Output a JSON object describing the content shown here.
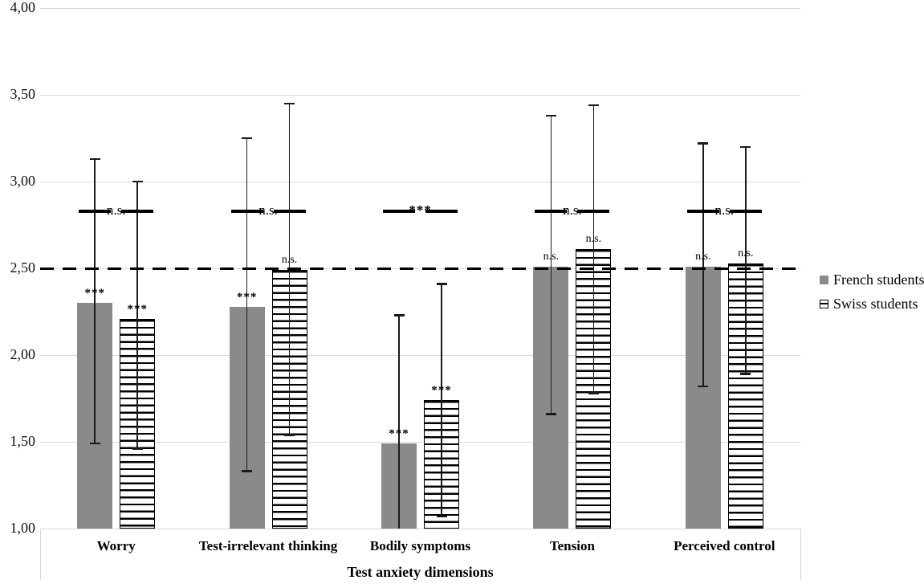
{
  "chart_data": {
    "type": "bar",
    "title": "",
    "xlabel": "Test anxiety dimensions",
    "ylabel": "",
    "ylim": [
      1.0,
      4.0
    ],
    "grid": true,
    "legend_position": "right",
    "yticks": {
      "values": [
        1.0,
        1.5,
        2.0,
        2.5,
        3.0,
        3.5,
        4.0
      ],
      "labels": [
        "1,00",
        "1,50",
        "2,00",
        "2,50",
        "3,00",
        "3,50",
        "4,00"
      ]
    },
    "categories": [
      "Worry",
      "Test-irrelevant thinking",
      "Bodily symptoms",
      "Tension",
      "Perceived control"
    ],
    "series": [
      {
        "name": "French students",
        "style": "solid-gray",
        "values": [
          2.3,
          2.28,
          1.49,
          2.51,
          2.51
        ],
        "error_top": [
          3.13,
          3.25,
          2.23,
          3.38,
          3.22
        ],
        "error_bottom": [
          1.49,
          1.33,
          1.0,
          1.66,
          1.82
        ],
        "error_bottom_cap": [
          true,
          true,
          false,
          true,
          true
        ],
        "bar_labels": [
          "***",
          "***",
          "***",
          "n.s.",
          "n.s."
        ]
      },
      {
        "name": "Swiss students",
        "style": "striped",
        "values": [
          2.21,
          2.49,
          1.74,
          2.61,
          2.53
        ],
        "error_top": [
          3.0,
          3.45,
          2.41,
          3.44,
          3.2
        ],
        "error_bottom": [
          1.46,
          1.54,
          1.07,
          1.78,
          1.89
        ],
        "error_bottom_cap": [
          true,
          true,
          true,
          true,
          true
        ],
        "bar_labels": [
          "***",
          "n.s.",
          "***",
          "n.s.",
          "n.s."
        ]
      }
    ],
    "pair_significance": {
      "y_value": 2.83,
      "labels": [
        "n.s.",
        "n.s.",
        "***",
        "n.s.",
        "n.s."
      ]
    },
    "reference_line": {
      "value": 2.5,
      "style": "dashed"
    },
    "colors": {
      "french_bar": "#8a8a8a",
      "stripe": "#000000",
      "gridline": "#d9d9d9",
      "text": "#000000",
      "reference_line": "#000000"
    }
  }
}
